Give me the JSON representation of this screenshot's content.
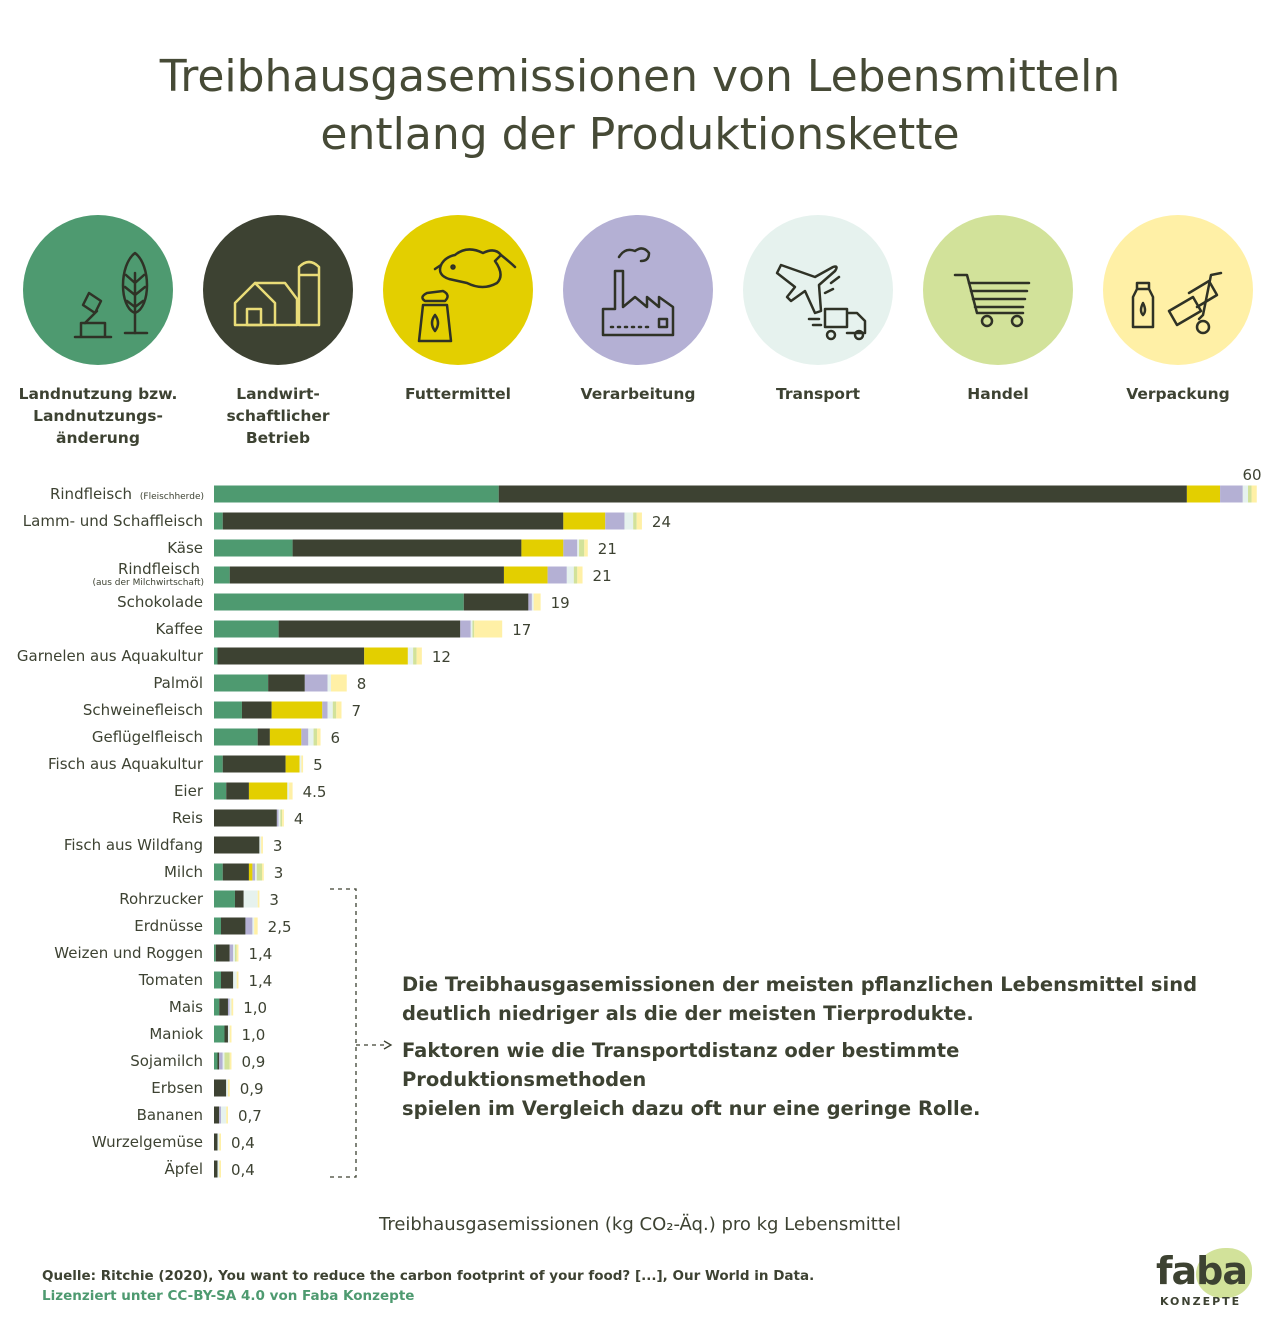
{
  "title": {
    "line1": "Treibhausgasemissionen von Lebensmitteln",
    "line2": "entlang der Produktionskette"
  },
  "stages": [
    {
      "label": "Landnutzung bzw. Landnutzungs- änderung",
      "color": "#4e9a70",
      "icon": "axe-tree-icon"
    },
    {
      "label": "Landwirt- schaftlicher Betrieb",
      "color": "#3d4232",
      "icon": "farm-barn-icon"
    },
    {
      "label": "Futtermittel",
      "color": "#e3cf00",
      "icon": "cow-feed-icon"
    },
    {
      "label": "Verarbeitung",
      "color": "#b4b0d4",
      "icon": "factory-icon"
    },
    {
      "label": "Transport",
      "color": "#e6f2ee",
      "icon": "plane-truck-icon"
    },
    {
      "label": "Handel",
      "color": "#d2e29a",
      "icon": "shopping-cart-icon"
    },
    {
      "label": "Verpackung",
      "color": "#fff0a6",
      "icon": "packaging-cart-icon"
    }
  ],
  "chart_data": {
    "type": "bar",
    "orientation": "horizontal",
    "stacked": true,
    "xlabel": "Treibhausgasemissionen (kg CO₂-Äq.) pro kg Lebensmittel",
    "xlim": [
      0,
      60
    ],
    "series": [
      {
        "name": "Landnutzung bzw. Landnutzungsänderung",
        "color": "#4e9a70"
      },
      {
        "name": "Landwirtschaftlicher Betrieb",
        "color": "#3d4232"
      },
      {
        "name": "Futtermittel",
        "color": "#e3cf00"
      },
      {
        "name": "Verarbeitung",
        "color": "#b4b0d4"
      },
      {
        "name": "Transport",
        "color": "#e6f2ee"
      },
      {
        "name": "Handel",
        "color": "#d2e29a"
      },
      {
        "name": "Verpackung",
        "color": "#fff0a6"
      }
    ],
    "categories": [
      {
        "name": "Rindfleisch",
        "note": "(Fleischherde)",
        "label": "60",
        "values": [
          16.3,
          39.4,
          1.9,
          1.3,
          0.3,
          0.2,
          0.3
        ]
      },
      {
        "name": "Lamm- und Schaffleisch",
        "label": "24",
        "values": [
          0.5,
          19.5,
          2.4,
          1.1,
          0.5,
          0.2,
          0.3
        ]
      },
      {
        "name": "Käse",
        "label": "21",
        "values": [
          4.5,
          13.1,
          2.4,
          0.8,
          0.1,
          0.3,
          0.2
        ]
      },
      {
        "name": "Rindfleisch",
        "note": "(aus der Milchwirtschaft)",
        "label": "21",
        "values": [
          0.9,
          15.7,
          2.5,
          1.1,
          0.4,
          0.2,
          0.3
        ]
      },
      {
        "name": "Schokolade",
        "label": "19",
        "values": [
          14.3,
          3.7,
          0.0,
          0.2,
          0.1,
          0.0,
          0.4
        ]
      },
      {
        "name": "Kaffee",
        "label": "17",
        "values": [
          3.7,
          10.4,
          0.0,
          0.6,
          0.1,
          0.1,
          1.6
        ]
      },
      {
        "name": "Garnelen aus Aquakultur",
        "label": "12",
        "values": [
          0.2,
          8.4,
          2.5,
          0.0,
          0.3,
          0.2,
          0.3
        ]
      },
      {
        "name": "Palmöl",
        "label": "8",
        "values": [
          3.1,
          2.1,
          0.0,
          1.3,
          0.2,
          0.0,
          0.9
        ]
      },
      {
        "name": "Schweinefleisch",
        "label": "7",
        "values": [
          1.6,
          1.7,
          2.9,
          0.3,
          0.3,
          0.2,
          0.3
        ]
      },
      {
        "name": "Geflügelfleisch",
        "label": "6",
        "values": [
          2.5,
          0.7,
          1.8,
          0.4,
          0.3,
          0.2,
          0.2
        ]
      },
      {
        "name": "Fisch aus Aquakultur",
        "label": "5",
        "values": [
          0.5,
          3.6,
          0.8,
          0.0,
          0.1,
          0.0,
          0.1
        ]
      },
      {
        "name": "Eier",
        "label": "4.5",
        "values": [
          0.7,
          1.3,
          2.2,
          0.0,
          0.1,
          0.0,
          0.2
        ]
      },
      {
        "name": "Reis",
        "label": "4",
        "values": [
          0.0,
          3.6,
          0.0,
          0.1,
          0.1,
          0.1,
          0.1
        ]
      },
      {
        "name": "Fisch aus Wildfang",
        "label": "3",
        "values": [
          0.0,
          2.6,
          0.0,
          0.0,
          0.1,
          0.0,
          0.1
        ]
      },
      {
        "name": "Milch",
        "label": "3",
        "values": [
          0.5,
          1.5,
          0.2,
          0.15,
          0.1,
          0.3,
          0.1
        ]
      },
      {
        "name": "Rohrzucker",
        "label": "3",
        "values": [
          1.2,
          0.5,
          0.0,
          0.0,
          0.8,
          0.0,
          0.1
        ]
      },
      {
        "name": "Erdnüsse",
        "label": "2,5",
        "values": [
          0.4,
          1.4,
          0.0,
          0.4,
          0.1,
          0.0,
          0.2
        ]
      },
      {
        "name": "Weizen und Roggen",
        "label": "1,4",
        "values": [
          0.1,
          0.8,
          0.0,
          0.2,
          0.1,
          0.1,
          0.1
        ]
      },
      {
        "name": "Tomaten",
        "label": "1,4",
        "values": [
          0.4,
          0.7,
          0.0,
          0.0,
          0.2,
          0.0,
          0.1
        ]
      },
      {
        "name": "Mais",
        "label": "1,0",
        "values": [
          0.3,
          0.5,
          0.0,
          0.1,
          0.1,
          0.0,
          0.1
        ]
      },
      {
        "name": "Maniok",
        "label": "1,0",
        "values": [
          0.6,
          0.2,
          0.0,
          0.0,
          0.1,
          0.0,
          0.1
        ]
      },
      {
        "name": "Sojamilch",
        "label": "0,9",
        "values": [
          0.2,
          0.1,
          0.0,
          0.2,
          0.1,
          0.3,
          0.1
        ]
      },
      {
        "name": "Erbsen",
        "label": "0,9",
        "values": [
          0.0,
          0.7,
          0.0,
          0.0,
          0.1,
          0.0,
          0.1
        ]
      },
      {
        "name": "Bananen",
        "label": "0,7",
        "values": [
          0.0,
          0.3,
          0.0,
          0.1,
          0.3,
          0.0,
          0.1
        ]
      },
      {
        "name": "Wurzelgemüse",
        "label": "0,4",
        "values": [
          0.0,
          0.2,
          0.0,
          0.0,
          0.1,
          0.0,
          0.1
        ]
      },
      {
        "name": "Äpfel",
        "label": "0,4",
        "values": [
          0.0,
          0.2,
          0.0,
          0.0,
          0.1,
          0.0,
          0.1
        ]
      }
    ],
    "annotations": [
      "Die Treibhausgasemissionen der meisten pflanzlichen Lebensmittel sind deutlich niedriger als die der meisten Tierprodukte.",
      "Faktoren wie die Transportdistanz oder bestimmte Produktionsmethoden spielen im Vergleich dazu oft nur eine geringe Rolle."
    ]
  },
  "note": {
    "line1": "Die Treibhausgasemissionen der meisten pflanzlichen Lebensmittel sind",
    "line2": "deutlich niedriger als die der meisten Tierprodukte.",
    "line3": "Faktoren wie die Transportdistanz oder bestimmte Produktionsmethoden",
    "line4": "spielen im Vergleich dazu oft nur eine geringe Rolle."
  },
  "footer": {
    "source": "Quelle: Ritchie (2020), You want to reduce the carbon footprint of your food? [...], Our World in Data.",
    "license": "Lizenziert unter CC-BY-SA 4.0 von Faba Konzepte"
  },
  "logo": {
    "word": "faba",
    "sub": "KONZEPTE",
    "accent": "#d2e29a"
  }
}
